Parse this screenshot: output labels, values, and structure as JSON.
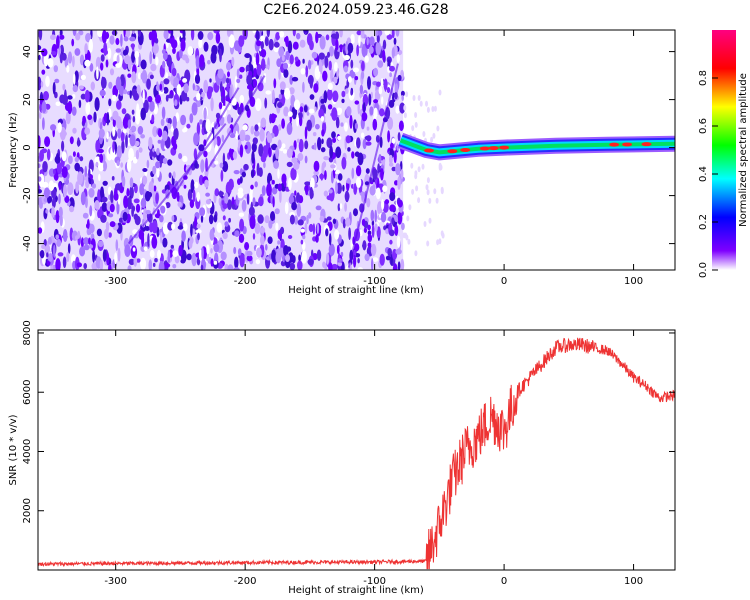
{
  "title": "C2E6.2024.059.23.46.G28",
  "chart_data": [
    {
      "type": "heatmap",
      "title": "C2E6.2024.059.23.46.G28",
      "xlabel": "Height of straight line (km)",
      "ylabel": "Frequency (Hz)",
      "xlim": [
        -360,
        132
      ],
      "ylim": [
        -51,
        49
      ],
      "xticks": [
        -300,
        -200,
        -100,
        0,
        100
      ],
      "yticks": [
        -40,
        -20,
        0,
        20,
        40
      ],
      "noise_region_x": [
        -360,
        -78
      ],
      "signal_line": [
        [
          -80,
          3
        ],
        [
          -70,
          1
        ],
        [
          -60,
          -1
        ],
        [
          -50,
          -2
        ],
        [
          -40,
          -1.5
        ],
        [
          -20,
          -0.5
        ],
        [
          0,
          0
        ],
        [
          40,
          0.8
        ],
        [
          80,
          1.2
        ],
        [
          132,
          1.6
        ]
      ],
      "grid": false,
      "colorbar": {
        "label": "Normalized spectral amplitude",
        "ticks": [
          0.0,
          0.2,
          0.4,
          0.6,
          0.8
        ],
        "range": [
          0,
          1
        ],
        "colors": [
          "#ffffff",
          "#7f00ff",
          "#0000ff",
          "#00ffff",
          "#00ff00",
          "#ffff00",
          "#ff0000",
          "#ff0080"
        ]
      }
    },
    {
      "type": "line",
      "xlabel": "Height of straight line (km)",
      "ylabel": "SNR (10 * v/v)",
      "xlim": [
        -360,
        132
      ],
      "ylim": [
        0,
        8100
      ],
      "xticks": [
        -300,
        -200,
        -100,
        0,
        100
      ],
      "yticks": [
        2000,
        4000,
        6000,
        8000
      ],
      "grid": false,
      "color": "#ee3333",
      "envelope": {
        "x": [
          -360,
          -300,
          -200,
          -100,
          -60,
          -50,
          -40,
          -30,
          -20,
          -10,
          0,
          10,
          20,
          30,
          40,
          50,
          60,
          70,
          80,
          90,
          100,
          110,
          120,
          132
        ],
        "y": [
          200,
          220,
          250,
          270,
          300,
          1500,
          3000,
          4000,
          4500,
          5200,
          4700,
          6000,
          6500,
          7000,
          7500,
          7600,
          7600,
          7500,
          7400,
          7000,
          6500,
          6200,
          5800,
          5900
        ]
      }
    }
  ]
}
